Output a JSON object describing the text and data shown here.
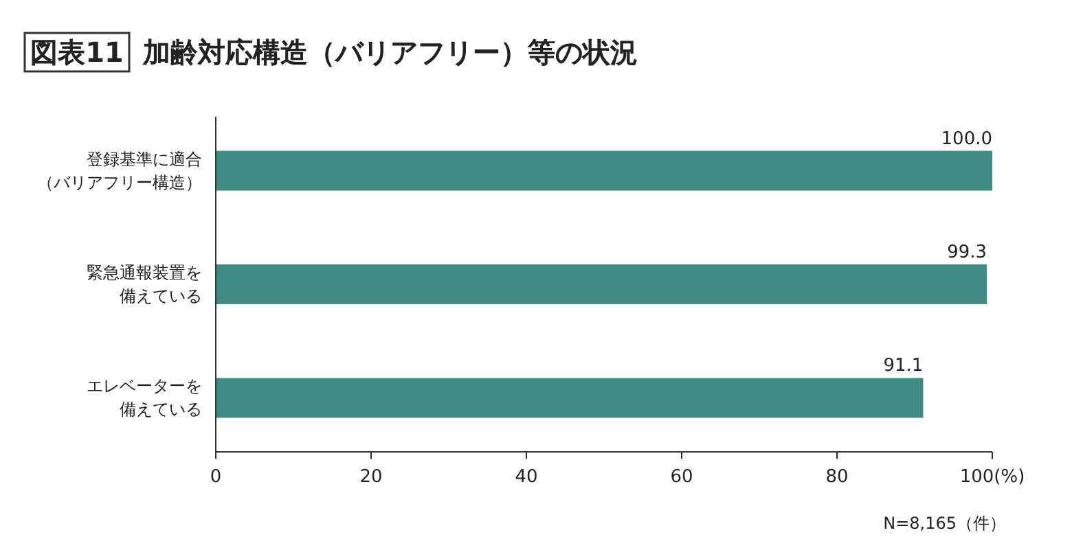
{
  "chart_data": {
    "type": "bar",
    "orientation": "horizontal",
    "title": "図表11",
    "subtitle": "加齢対応構造（バリアフリー）等の状況",
    "categories": [
      "登録基準に適合（バリアフリー構造）",
      "緊急通報装置を備えている",
      "エレベーターを備えている"
    ],
    "values": [
      100.0,
      99.3,
      91.1
    ],
    "value_labels": [
      "100.0",
      "99.3",
      "91.1"
    ],
    "color": "#3f8c82",
    "xlim": [
      0,
      100
    ],
    "xticks": [
      0,
      20,
      40,
      60,
      80,
      {
        "value": 100,
        "label": "100(%)"
      }
    ],
    "annotations": [
      "N=8,165（件）"
    ]
  }
}
